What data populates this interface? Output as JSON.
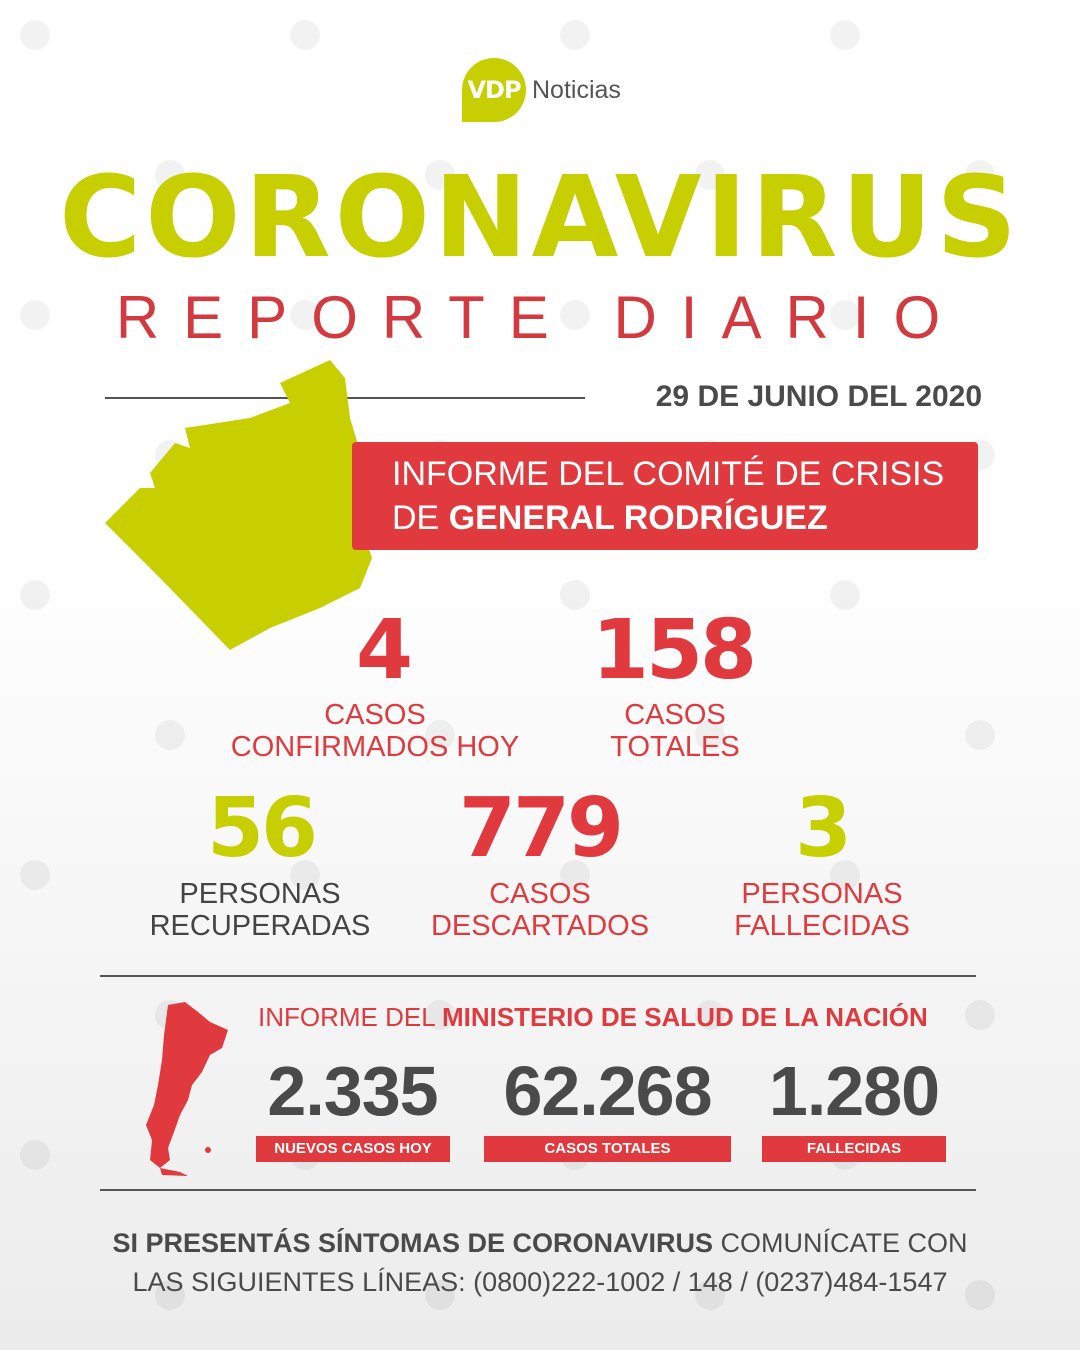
{
  "watermark": "VDP NOTICIAS",
  "logo": {
    "mark": "VDP",
    "name": "Noticias"
  },
  "header": {
    "title": "CORONAVIRUS",
    "subtitle": "REPORTE DIARIO",
    "date": "29 DE JUNIO DEL 2020"
  },
  "local": {
    "banner_line1": "INFORME DEL COMITÉ DE CRISIS",
    "banner_prefix": "DE ",
    "banner_bold": "GENERAL RODRÍGUEZ",
    "stats": [
      {
        "value": "4",
        "label1": "CASOS",
        "label2": "CONFIRMADOS HOY"
      },
      {
        "value": "158",
        "label1": "CASOS",
        "label2": "TOTALES"
      },
      {
        "value": "56",
        "label1": "PERSONAS",
        "label2": "RECUPERADAS"
      },
      {
        "value": "779",
        "label1": "CASOS",
        "label2": "DESCARTADOS"
      },
      {
        "value": "3",
        "label1": "PERSONAS",
        "label2": "FALLECIDAS"
      }
    ]
  },
  "national": {
    "heading_prefix": "INFORME DEL ",
    "heading_bold": "MINISTERIO DE SALUD DE LA NACIÓN",
    "stats": [
      {
        "value": "2.335",
        "label": "NUEVOS CASOS HOY"
      },
      {
        "value": "62.268",
        "label": "CASOS TOTALES"
      },
      {
        "value": "1.280",
        "label": "FALLECIDAS"
      }
    ]
  },
  "footer": {
    "line1_bold": "SI PRESENTÁS SÍNTOMAS DE CORONAVIRUS",
    "line1_rest": " COMUNÍCATE CON",
    "line2": "LAS SIGUIENTES LÍNEAS:  (0800)222-1002  /  148  /  (0237)484-1547"
  },
  "colors": {
    "accent": "#c8cf00",
    "red": "#e03a3e",
    "text": "#4a4a4a"
  }
}
